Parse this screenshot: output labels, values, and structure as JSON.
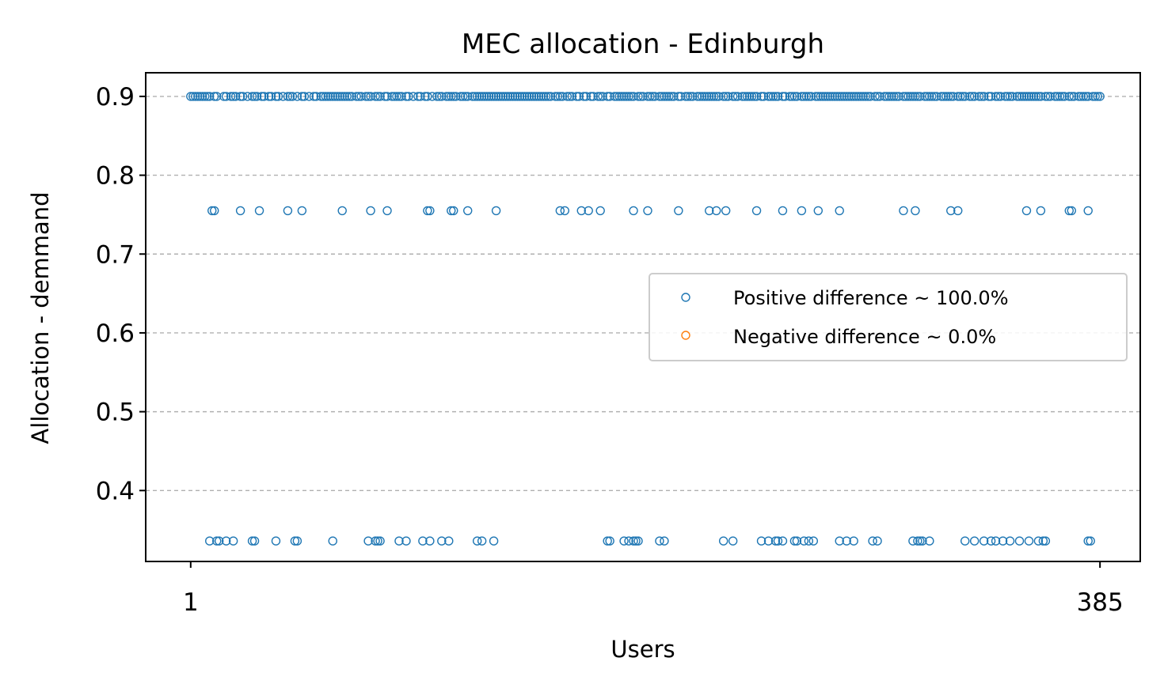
{
  "chart_data": {
    "type": "scatter",
    "title": "MEC allocation - Edinburgh",
    "xlabel": "Users",
    "ylabel": "Allocation - demmand",
    "xlim": [
      -18,
      402
    ],
    "ylim": [
      0.31,
      0.93
    ],
    "xticks": [
      1,
      385
    ],
    "yticks": [
      0.4,
      0.5,
      0.6,
      0.7,
      0.8,
      0.9
    ],
    "ytick_labels": [
      "0.4",
      "0.5",
      "0.6",
      "0.7",
      "0.8",
      "0.9"
    ],
    "grid": "y-dashed",
    "legend_position": "center-right",
    "colors": {
      "positive": "#1f77b4",
      "negative": "#ff7f0e",
      "grid": "#b0b0b0"
    },
    "series": [
      {
        "name": "Positive difference ~ 100.0%",
        "levels": [
          {
            "y": 0.9,
            "x": [
              1,
              2,
              3,
              4,
              5,
              6,
              7,
              8,
              9,
              11,
              12,
              15,
              16,
              18,
              19,
              20,
              22,
              23,
              25,
              27,
              28,
              29,
              31,
              32,
              34,
              35,
              37,
              38,
              40,
              42,
              43,
              44,
              46,
              48,
              49,
              51,
              53,
              54,
              56,
              57,
              58,
              59,
              60,
              61,
              62,
              63,
              64,
              65,
              66,
              67,
              68,
              69,
              71,
              72,
              73,
              75,
              76,
              77,
              79,
              80,
              81,
              83,
              84,
              86,
              87,
              88,
              89,
              90,
              92,
              93,
              95,
              97,
              98,
              100,
              101,
              103,
              105,
              106,
              107,
              109,
              110,
              111,
              112,
              113,
              115,
              116,
              117,
              118,
              120,
              121,
              122,
              123,
              124,
              125,
              126,
              127,
              128,
              129,
              130,
              131,
              132,
              133,
              134,
              135,
              136,
              137,
              138,
              139,
              140,
              141,
              142,
              143,
              144,
              145,
              146,
              147,
              148,
              149,
              150,
              151,
              152,
              153,
              155,
              156,
              157,
              158,
              160,
              161,
              162,
              164,
              165,
              167,
              168,
              170,
              171,
              173,
              174,
              175,
              177,
              178,
              180,
              181,
              182,
              183,
              184,
              185,
              186,
              187,
              188,
              190,
              191,
              192,
              194,
              195,
              196,
              197,
              199,
              200,
              201,
              202,
              203,
              204,
              205,
              207,
              208,
              210,
              211,
              212,
              213,
              215,
              216,
              217,
              218,
              219,
              220,
              221,
              222,
              223,
              224,
              226,
              227,
              228,
              230,
              231,
              232,
              234,
              235,
              236,
              237,
              238,
              239,
              240,
              242,
              243,
              245,
              246,
              247,
              248,
              249,
              251,
              252,
              254,
              255,
              256,
              257,
              259,
              260,
              261,
              262,
              263,
              265,
              266,
              267,
              268,
              269,
              270,
              271,
              272,
              273,
              274,
              275,
              276,
              277,
              278,
              279,
              280,
              281,
              282,
              283,
              284,
              285,
              286,
              287,
              288,
              290,
              291,
              292,
              294,
              295,
              296,
              297,
              298,
              299,
              300,
              302,
              303,
              304,
              305,
              306,
              307,
              308,
              309,
              311,
              312,
              313,
              314,
              315,
              316,
              318,
              319,
              320,
              321,
              322,
              323,
              325,
              326,
              327,
              328,
              330,
              331,
              332,
              334,
              335,
              336,
              338,
              339,
              341,
              342,
              343,
              345,
              346,
              347,
              348,
              350,
              351,
              352,
              353,
              354,
              355,
              356,
              357,
              358,
              359,
              360,
              362,
              363,
              364,
              366,
              367,
              368,
              369,
              370,
              372,
              373,
              374,
              376,
              377,
              378,
              379,
              380,
              382,
              383,
              384,
              385
            ]
          },
          {
            "y": 0.755,
            "x": [
              10,
              11,
              22,
              30,
              42,
              48,
              65,
              77,
              84,
              101,
              102,
              111,
              112,
              118,
              130,
              157,
              159,
              166,
              169,
              174,
              188,
              194,
              207,
              220,
              223,
              227,
              240,
              251,
              259,
              266,
              275,
              302,
              307,
              322,
              325,
              354,
              360,
              372,
              373,
              380
            ]
          },
          {
            "y": 0.336,
            "x": [
              9,
              12,
              13,
              16,
              19,
              27,
              28,
              37,
              45,
              46,
              61,
              76,
              79,
              80,
              81,
              89,
              92,
              99,
              102,
              107,
              110,
              122,
              124,
              129,
              177,
              178,
              184,
              186,
              188,
              189,
              190,
              199,
              201,
              226,
              230,
              242,
              245,
              248,
              249,
              251,
              256,
              257,
              260,
              262,
              264,
              275,
              278,
              281,
              289,
              291,
              306,
              308,
              309,
              310,
              313,
              328,
              332,
              336,
              339,
              341,
              344,
              347,
              351,
              355,
              359,
              361,
              362,
              380,
              381
            ]
          }
        ]
      },
      {
        "name": "Negative difference ~ 0.0%",
        "levels": []
      }
    ]
  }
}
